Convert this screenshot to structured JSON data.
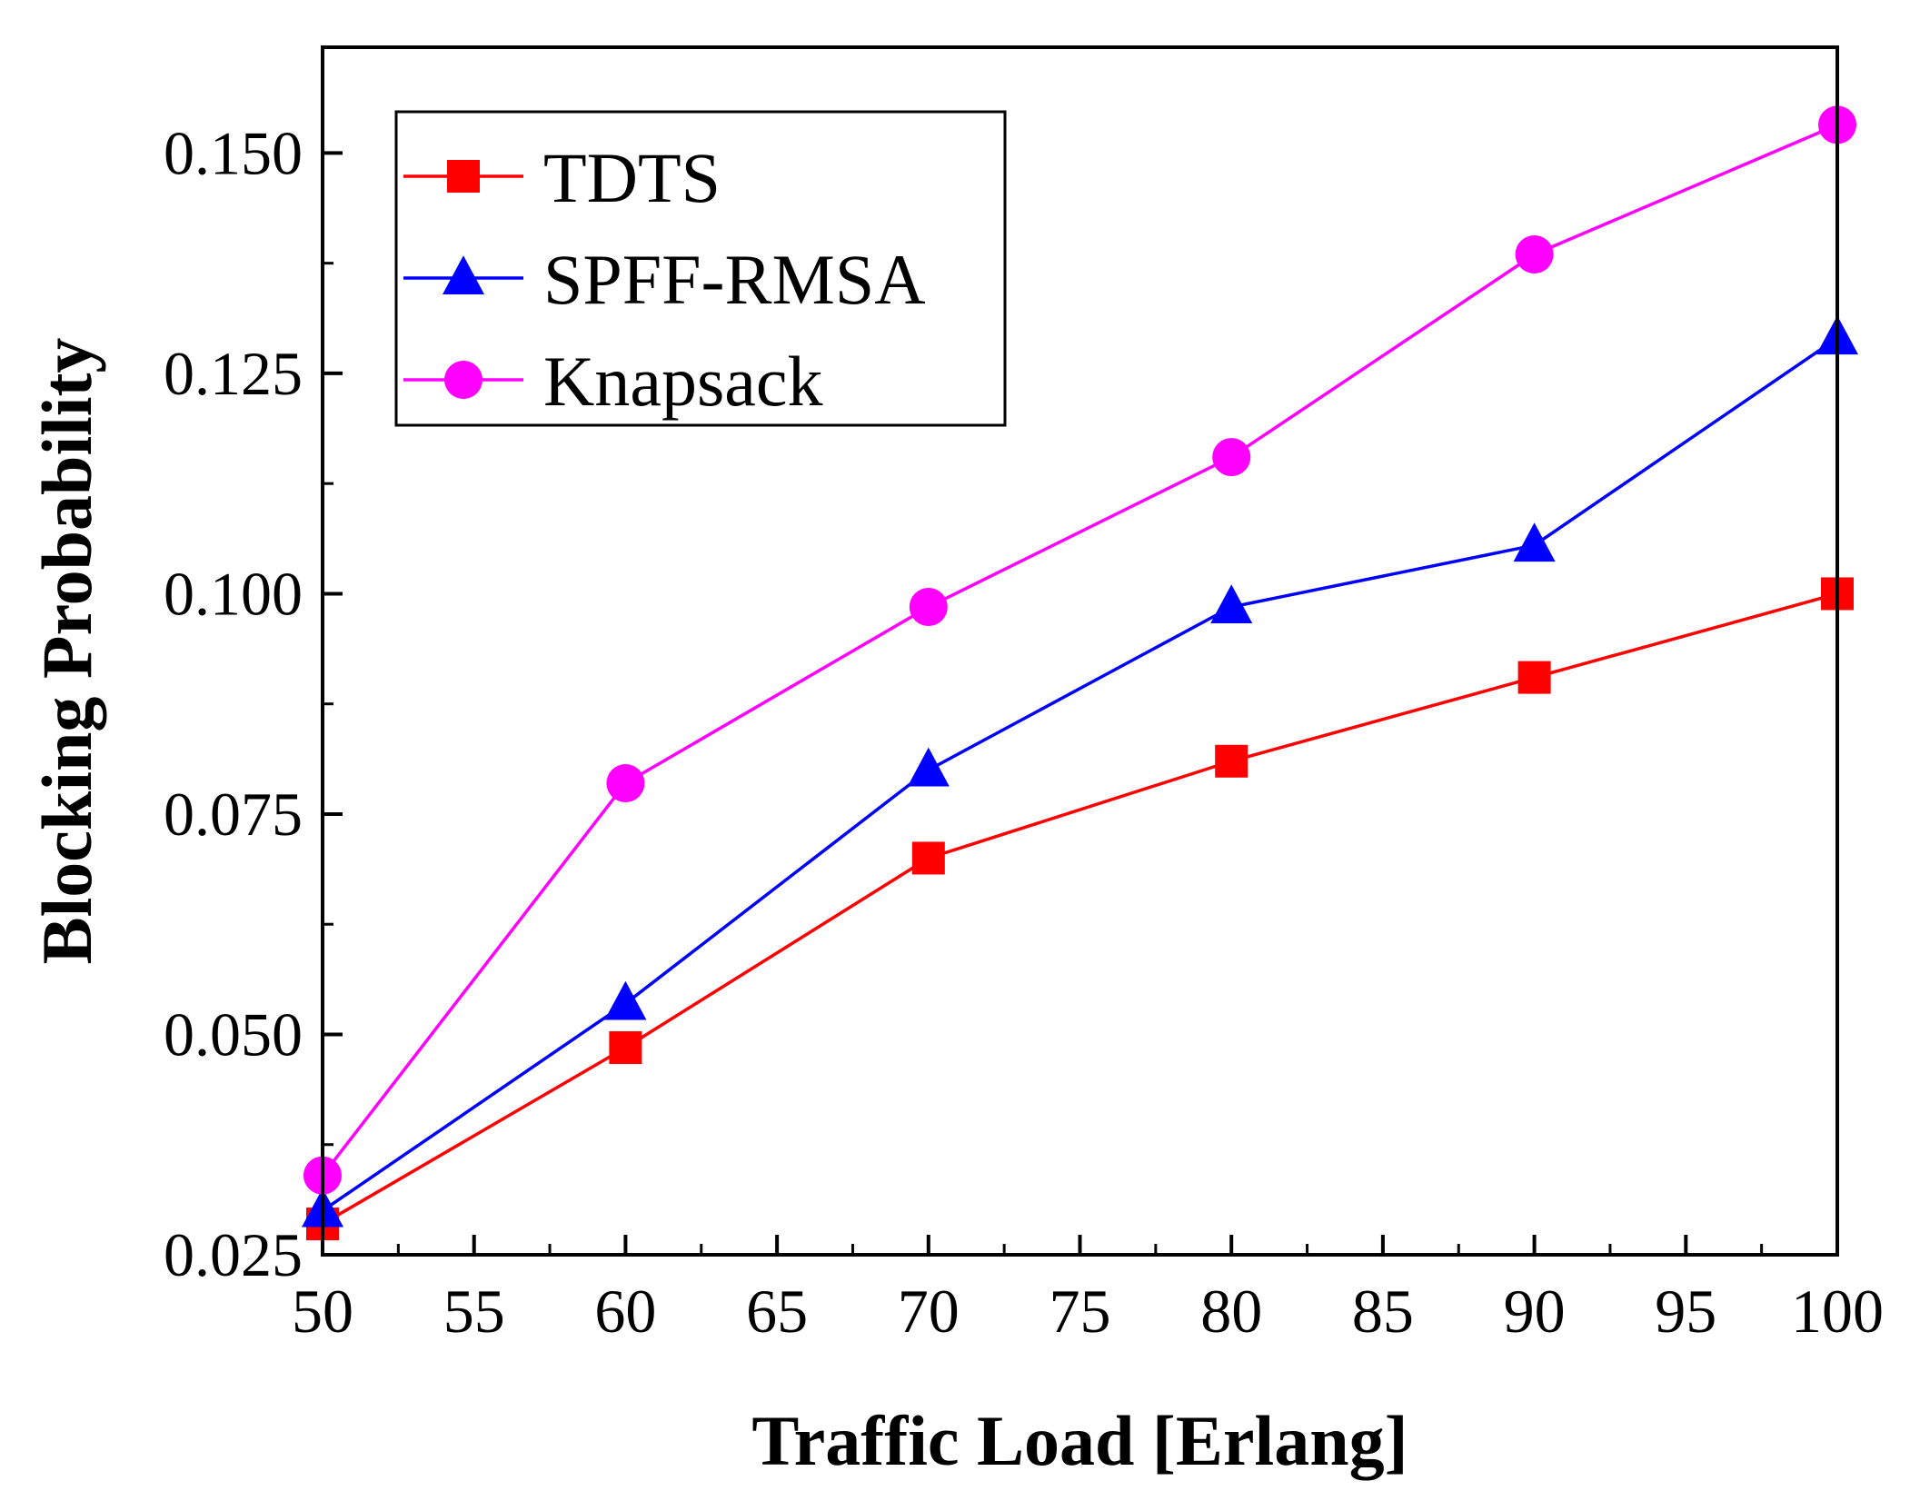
{
  "chart_data": {
    "type": "line",
    "title": "",
    "xlabel": "Traffic Load [Erlang]",
    "ylabel": "Blocking Probability",
    "xlim": [
      50,
      100
    ],
    "ylim": [
      0.025,
      0.162
    ],
    "xticks": [
      50,
      55,
      60,
      65,
      70,
      75,
      80,
      85,
      90,
      95,
      100
    ],
    "xtick_labels": [
      "50",
      "55",
      "60",
      "65",
      "70",
      "75",
      "80",
      "85",
      "90",
      "95",
      "100"
    ],
    "yticks": [
      0.025,
      0.05,
      0.075,
      0.1,
      0.125,
      0.15
    ],
    "ytick_labels": [
      "0.025",
      "0.050",
      "0.075",
      "0.100",
      "0.125",
      "0.150"
    ],
    "grid": false,
    "legend_position": "top-left",
    "series": [
      {
        "name": "TDTS",
        "color": "#ff0000",
        "marker": "square",
        "x": [
          50,
          60,
          70,
          80,
          90,
          100
        ],
        "values": [
          0.0285,
          0.0485,
          0.07,
          0.081,
          0.0905,
          0.1
        ]
      },
      {
        "name": "SPFF-RMSA",
        "color": "#0000ff",
        "marker": "triangle",
        "x": [
          50,
          60,
          70,
          80,
          90,
          100
        ],
        "values": [
          0.03,
          0.0535,
          0.08,
          0.0985,
          0.1055,
          0.129
        ]
      },
      {
        "name": "Knapsack",
        "color": "#ff00ff",
        "marker": "circle",
        "x": [
          50,
          60,
          70,
          80,
          90,
          100
        ],
        "values": [
          0.034,
          0.0785,
          0.0985,
          0.1155,
          0.1385,
          0.1532
        ]
      }
    ]
  }
}
